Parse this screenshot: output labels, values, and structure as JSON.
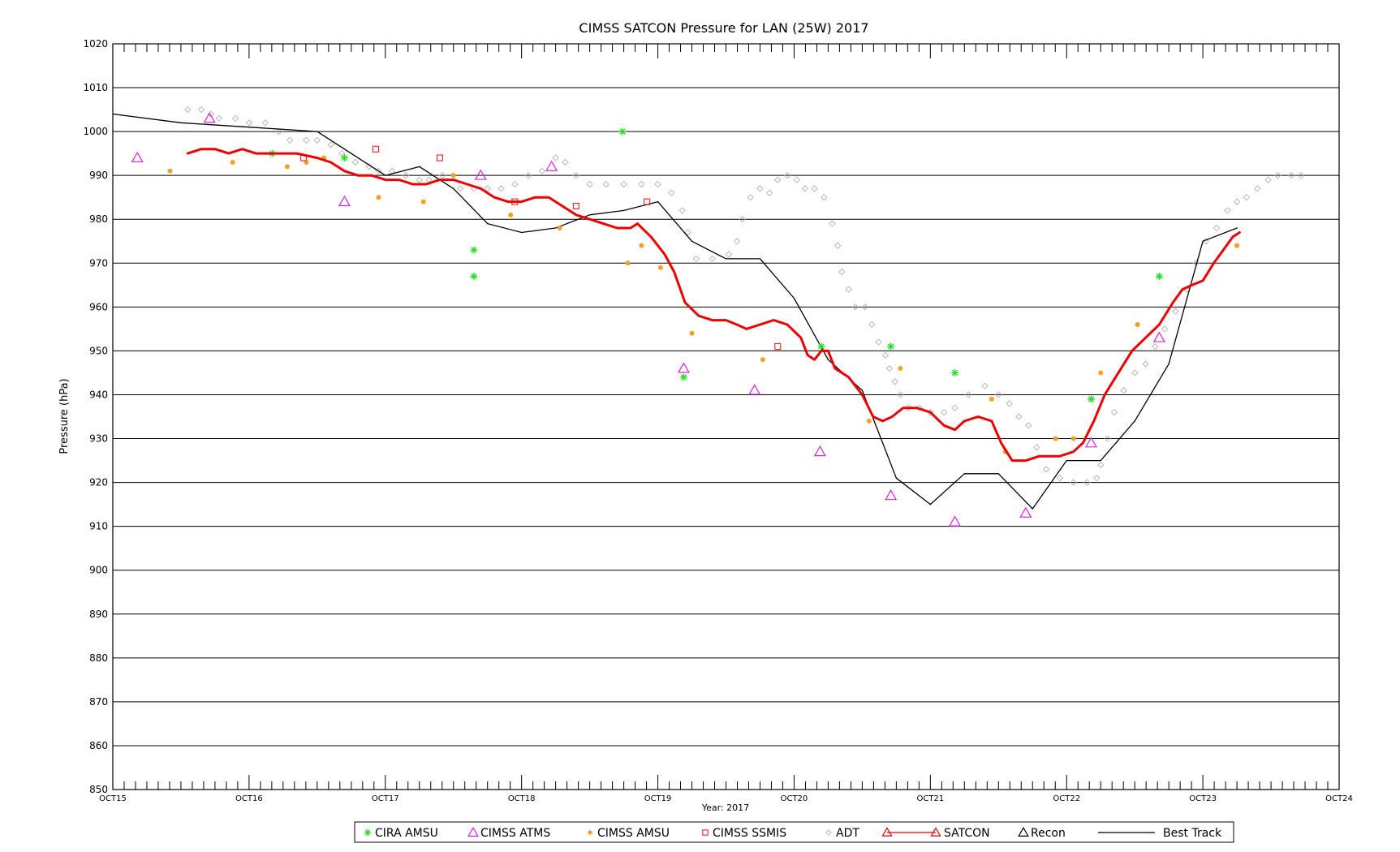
{
  "chart_data": {
    "type": "scatter",
    "title": "CIMSS SATCON Pressure for LAN (25W) 2017",
    "xlabel": "Year: 2017",
    "ylabel": "Pressure (hPa)",
    "xlim": [
      15,
      24
    ],
    "ylim": [
      850,
      1020
    ],
    "x_unit": "day of October 2017 (tick at each 00 UTC)",
    "x_ticks": [
      {
        "x": 15,
        "label": "OCT15"
      },
      {
        "x": 16,
        "label": "OCT16"
      },
      {
        "x": 17,
        "label": "OCT17"
      },
      {
        "x": 18,
        "label": "OCT18"
      },
      {
        "x": 19,
        "label": "OCT19"
      },
      {
        "x": 20,
        "label": "OCT20"
      },
      {
        "x": 21,
        "label": "OCT21"
      },
      {
        "x": 22,
        "label": "OCT22"
      },
      {
        "x": 23,
        "label": "OCT23"
      },
      {
        "x": 24,
        "label": "OCT24"
      }
    ],
    "y_ticks": [
      "850",
      "860",
      "870",
      "880",
      "890",
      "900",
      "910",
      "920",
      "930",
      "940",
      "950",
      "960",
      "970",
      "980",
      "990",
      "1000",
      "1010",
      "1020"
    ],
    "grid": "horizontal lines every 10 hPa",
    "legend_position": "bottom-center",
    "series": [
      {
        "name": "CIRA AMSU",
        "marker": "asterisk",
        "color": "#22dd22",
        "points": [
          [
            16.17,
            995
          ],
          [
            16.7,
            994
          ],
          [
            17.65,
            973
          ],
          [
            17.65,
            967
          ],
          [
            18.74,
            1000
          ],
          [
            19.19,
            944
          ],
          [
            20.2,
            951
          ],
          [
            20.71,
            951
          ],
          [
            21.18,
            945
          ],
          [
            22.18,
            939
          ],
          [
            22.68,
            967
          ]
        ]
      },
      {
        "name": "CIMSS ATMS",
        "marker": "open-triangle",
        "color": "#dd22dd",
        "points": [
          [
            15.18,
            994
          ],
          [
            15.71,
            1003
          ],
          [
            16.7,
            984
          ],
          [
            17.7,
            990
          ],
          [
            18.22,
            992
          ],
          [
            19.19,
            946
          ],
          [
            19.71,
            941
          ],
          [
            20.19,
            927
          ],
          [
            20.71,
            917
          ],
          [
            21.18,
            911
          ],
          [
            21.7,
            913
          ],
          [
            22.18,
            929
          ],
          [
            22.68,
            953
          ]
        ]
      },
      {
        "name": "CIMSS AMSU",
        "marker": "filled-circle",
        "color": "#f5a020",
        "points": [
          [
            15.42,
            991
          ],
          [
            15.88,
            993
          ],
          [
            16.28,
            992
          ],
          [
            16.42,
            993
          ],
          [
            16.55,
            994
          ],
          [
            16.95,
            985
          ],
          [
            17.28,
            984
          ],
          [
            17.5,
            990
          ],
          [
            17.92,
            981
          ],
          [
            18.28,
            978
          ],
          [
            18.78,
            970
          ],
          [
            18.88,
            974
          ],
          [
            19.02,
            969
          ],
          [
            19.25,
            954
          ],
          [
            19.77,
            948
          ],
          [
            20.55,
            934
          ],
          [
            20.78,
            946
          ],
          [
            21.45,
            939
          ],
          [
            21.55,
            927
          ],
          [
            21.92,
            930
          ],
          [
            22.05,
            930
          ],
          [
            22.25,
            945
          ],
          [
            22.52,
            956
          ],
          [
            23.25,
            974
          ]
        ]
      },
      {
        "name": "CIMSS SSMIS",
        "marker": "open-square",
        "color": "#ee2222",
        "points": [
          [
            16.4,
            994
          ],
          [
            16.93,
            996
          ],
          [
            17.4,
            994
          ],
          [
            17.95,
            984
          ],
          [
            18.4,
            983
          ],
          [
            18.92,
            984
          ],
          [
            19.88,
            951
          ]
        ]
      },
      {
        "name": "ADT",
        "marker": "open-diamond",
        "color": "#b0b0b0",
        "points": [
          [
            15.55,
            1005
          ],
          [
            15.65,
            1005
          ],
          [
            15.72,
            1004
          ],
          [
            15.78,
            1003
          ],
          [
            15.9,
            1003
          ],
          [
            16.0,
            1002
          ],
          [
            16.12,
            1002
          ],
          [
            16.22,
            1000
          ],
          [
            16.3,
            998
          ],
          [
            16.42,
            998
          ],
          [
            16.5,
            998
          ],
          [
            16.6,
            997
          ],
          [
            16.68,
            995
          ],
          [
            16.78,
            993
          ],
          [
            16.88,
            992
          ],
          [
            16.95,
            991
          ],
          [
            17.05,
            991
          ],
          [
            17.15,
            990
          ],
          [
            17.25,
            989
          ],
          [
            17.32,
            989
          ],
          [
            17.42,
            990
          ],
          [
            17.55,
            987
          ],
          [
            17.65,
            987
          ],
          [
            17.75,
            987
          ],
          [
            17.85,
            987
          ],
          [
            17.95,
            988
          ],
          [
            18.05,
            990
          ],
          [
            18.15,
            991
          ],
          [
            18.25,
            994
          ],
          [
            18.32,
            993
          ],
          [
            18.4,
            990
          ],
          [
            18.5,
            988
          ],
          [
            18.62,
            988
          ],
          [
            18.75,
            988
          ],
          [
            18.88,
            988
          ],
          [
            19.0,
            988
          ],
          [
            19.1,
            986
          ],
          [
            19.18,
            982
          ],
          [
            19.22,
            977
          ],
          [
            19.28,
            971
          ],
          [
            19.4,
            971
          ],
          [
            19.52,
            972
          ],
          [
            19.58,
            975
          ],
          [
            19.62,
            980
          ],
          [
            19.68,
            985
          ],
          [
            19.75,
            987
          ],
          [
            19.82,
            986
          ],
          [
            19.88,
            989
          ],
          [
            19.95,
            990
          ],
          [
            20.02,
            989
          ],
          [
            20.08,
            987
          ],
          [
            20.15,
            987
          ],
          [
            20.22,
            985
          ],
          [
            20.28,
            979
          ],
          [
            20.32,
            974
          ],
          [
            20.35,
            968
          ],
          [
            20.4,
            964
          ],
          [
            20.45,
            960
          ],
          [
            20.52,
            960
          ],
          [
            20.57,
            956
          ],
          [
            20.62,
            952
          ],
          [
            20.67,
            949
          ],
          [
            20.7,
            946
          ],
          [
            20.74,
            943
          ],
          [
            20.78,
            940
          ],
          [
            20.84,
            937
          ],
          [
            20.92,
            937
          ],
          [
            21.0,
            936
          ],
          [
            21.1,
            936
          ],
          [
            21.18,
            937
          ],
          [
            21.28,
            940
          ],
          [
            21.4,
            942
          ],
          [
            21.5,
            940
          ],
          [
            21.58,
            938
          ],
          [
            21.65,
            935
          ],
          [
            21.72,
            933
          ],
          [
            21.78,
            928
          ],
          [
            21.85,
            923
          ],
          [
            21.95,
            921
          ],
          [
            22.05,
            920
          ],
          [
            22.15,
            920
          ],
          [
            22.22,
            921
          ],
          [
            22.25,
            924
          ],
          [
            22.3,
            930
          ],
          [
            22.35,
            936
          ],
          [
            22.42,
            941
          ],
          [
            22.5,
            945
          ],
          [
            22.58,
            947
          ],
          [
            22.65,
            951
          ],
          [
            22.72,
            955
          ],
          [
            22.8,
            959
          ],
          [
            22.88,
            964
          ],
          [
            22.95,
            970
          ],
          [
            23.02,
            975
          ],
          [
            23.1,
            978
          ],
          [
            23.18,
            982
          ],
          [
            23.25,
            984
          ],
          [
            23.32,
            985
          ],
          [
            23.4,
            987
          ],
          [
            23.48,
            989
          ],
          [
            23.55,
            990
          ],
          [
            23.65,
            990
          ],
          [
            23.72,
            990
          ]
        ]
      },
      {
        "name": "SATCON",
        "marker": "line",
        "color": "#ee0000",
        "points": [
          [
            15.55,
            995
          ],
          [
            15.65,
            996
          ],
          [
            15.75,
            996
          ],
          [
            15.85,
            995
          ],
          [
            15.95,
            996
          ],
          [
            16.05,
            995
          ],
          [
            16.2,
            995
          ],
          [
            16.35,
            995
          ],
          [
            16.5,
            994
          ],
          [
            16.6,
            993
          ],
          [
            16.7,
            991
          ],
          [
            16.8,
            990
          ],
          [
            16.9,
            990
          ],
          [
            17.0,
            989
          ],
          [
            17.1,
            989
          ],
          [
            17.2,
            988
          ],
          [
            17.3,
            988
          ],
          [
            17.4,
            989
          ],
          [
            17.5,
            989
          ],
          [
            17.6,
            988
          ],
          [
            17.7,
            987
          ],
          [
            17.8,
            985
          ],
          [
            17.9,
            984
          ],
          [
            18.0,
            984
          ],
          [
            18.1,
            985
          ],
          [
            18.2,
            985
          ],
          [
            18.3,
            983
          ],
          [
            18.4,
            981
          ],
          [
            18.5,
            980
          ],
          [
            18.6,
            979
          ],
          [
            18.7,
            978
          ],
          [
            18.8,
            978
          ],
          [
            18.85,
            979
          ],
          [
            18.95,
            976
          ],
          [
            19.05,
            972
          ],
          [
            19.12,
            968
          ],
          [
            19.2,
            961
          ],
          [
            19.3,
            958
          ],
          [
            19.4,
            957
          ],
          [
            19.5,
            957
          ],
          [
            19.58,
            956
          ],
          [
            19.65,
            955
          ],
          [
            19.75,
            956
          ],
          [
            19.85,
            957
          ],
          [
            19.95,
            956
          ],
          [
            20.05,
            953
          ],
          [
            20.1,
            949
          ],
          [
            20.15,
            948
          ],
          [
            20.2,
            950
          ],
          [
            20.25,
            950
          ],
          [
            20.3,
            946
          ],
          [
            20.4,
            944
          ],
          [
            20.5,
            940
          ],
          [
            20.58,
            935
          ],
          [
            20.65,
            934
          ],
          [
            20.72,
            935
          ],
          [
            20.8,
            937
          ],
          [
            20.9,
            937
          ],
          [
            21.0,
            936
          ],
          [
            21.1,
            933
          ],
          [
            21.18,
            932
          ],
          [
            21.25,
            934
          ],
          [
            21.35,
            935
          ],
          [
            21.45,
            934
          ],
          [
            21.52,
            929
          ],
          [
            21.6,
            925
          ],
          [
            21.7,
            925
          ],
          [
            21.8,
            926
          ],
          [
            21.95,
            926
          ],
          [
            22.05,
            927
          ],
          [
            22.12,
            929
          ],
          [
            22.2,
            934
          ],
          [
            22.28,
            940
          ],
          [
            22.38,
            945
          ],
          [
            22.48,
            950
          ],
          [
            22.58,
            953
          ],
          [
            22.68,
            956
          ],
          [
            22.78,
            961
          ],
          [
            22.85,
            964
          ],
          [
            22.92,
            965
          ],
          [
            23.0,
            966
          ],
          [
            23.08,
            970
          ],
          [
            23.15,
            973
          ],
          [
            23.22,
            976
          ],
          [
            23.27,
            977
          ]
        ]
      },
      {
        "name": "Recon",
        "marker": "open-triangle",
        "color": "#000000",
        "points": []
      },
      {
        "name": "Best Track",
        "marker": "line",
        "color": "#000000",
        "points": [
          [
            15.0,
            1004
          ],
          [
            15.5,
            1002
          ],
          [
            16.0,
            1001
          ],
          [
            16.5,
            1000
          ],
          [
            17.0,
            990
          ],
          [
            17.25,
            992
          ],
          [
            17.5,
            987
          ],
          [
            17.75,
            979
          ],
          [
            18.0,
            977
          ],
          [
            18.25,
            978
          ],
          [
            18.5,
            981
          ],
          [
            18.75,
            982
          ],
          [
            19.0,
            984
          ],
          [
            19.25,
            975
          ],
          [
            19.5,
            971
          ],
          [
            19.75,
            971
          ],
          [
            20.0,
            962
          ],
          [
            20.25,
            948
          ],
          [
            20.5,
            941
          ],
          [
            20.75,
            921
          ],
          [
            21.0,
            915
          ],
          [
            21.25,
            922
          ],
          [
            21.5,
            922
          ],
          [
            21.75,
            914
          ],
          [
            22.0,
            925
          ],
          [
            22.25,
            925
          ],
          [
            22.5,
            934
          ],
          [
            22.75,
            947
          ],
          [
            23.0,
            975
          ],
          [
            23.25,
            978
          ]
        ]
      }
    ]
  }
}
